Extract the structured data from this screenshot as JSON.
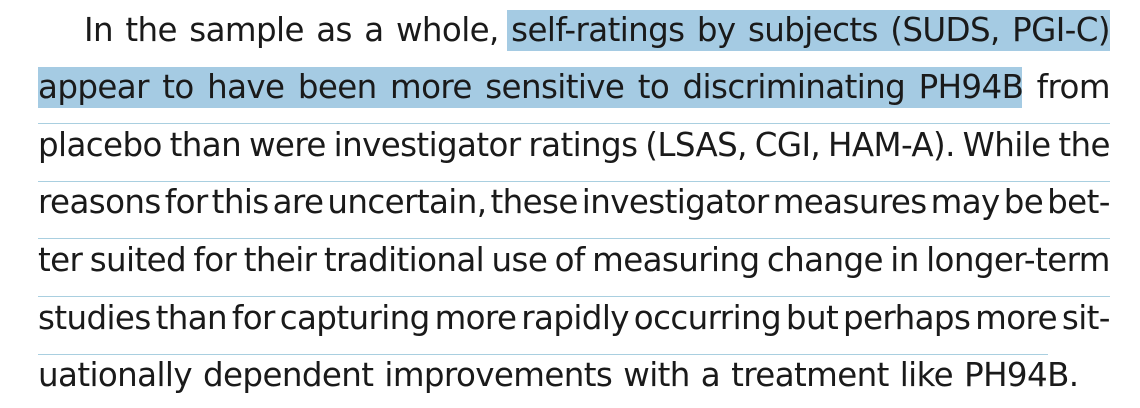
{
  "paragraph": {
    "lines": [
      [
        "In",
        "the",
        "sample",
        "as",
        "a",
        "whole,",
        "self-ratings",
        "by",
        "subjects",
        "(SUDS,",
        "PGI-C)"
      ],
      [
        "appear",
        "to",
        "have",
        "been",
        "more",
        "sensitive",
        "to",
        "discriminating",
        "PH94B",
        "from"
      ],
      [
        "placebo",
        "than",
        "were",
        "investigator",
        "ratings",
        "(LSAS,",
        "CGI,",
        "HAM-A).",
        "While",
        "the"
      ],
      [
        "reasons",
        "for",
        "this",
        "are",
        "uncertain,",
        "these",
        "investigator",
        "measures",
        "may",
        "be",
        "bet-"
      ],
      [
        "ter",
        "suited",
        "for",
        "their",
        "traditional",
        "use",
        "of",
        "measuring",
        "change",
        "in",
        "longer-term"
      ],
      [
        "studies",
        "than",
        "for",
        "capturing",
        "more",
        "rapidly",
        "occurring",
        "but",
        "perhaps",
        "more",
        "sit-"
      ],
      [
        "uationally",
        "dependent",
        "improvements",
        "with",
        "a",
        "treatment",
        "like",
        "PH94B."
      ]
    ],
    "highlight_color": "#a5cbe3",
    "rule_color": "#a9cfe0"
  }
}
